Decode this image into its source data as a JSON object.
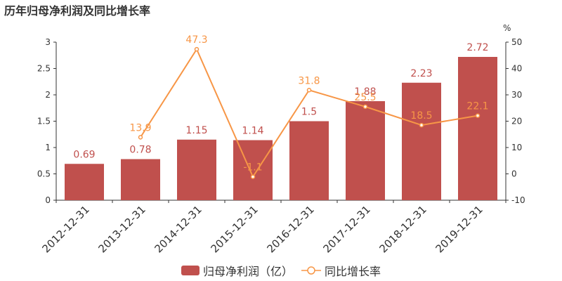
{
  "title": "历年归母净利润及同比增长率",
  "colors": {
    "bar": "#c0504d",
    "line": "#f79646",
    "axis": "#333333"
  },
  "chart_data": {
    "type": "bar+line",
    "categories": [
      "2012-12-31",
      "2013-12-31",
      "2014-12-31",
      "2015-12-31",
      "2016-12-31",
      "2017-12-31",
      "2018-12-31",
      "2019-12-31"
    ],
    "series": [
      {
        "name": "归母净利润（亿）",
        "type": "bar",
        "axis": "left",
        "values": [
          0.69,
          0.78,
          1.15,
          1.14,
          1.5,
          1.88,
          2.23,
          2.72
        ],
        "labels": [
          "0.69",
          "0.78",
          "1.15",
          "1.14",
          "1.5",
          "1.88",
          "2.23",
          "2.72"
        ]
      },
      {
        "name": "同比增长率",
        "type": "line",
        "axis": "right",
        "values": [
          null,
          13.9,
          47.3,
          -1.1,
          31.8,
          25.5,
          18.5,
          22.1
        ],
        "labels": [
          "",
          "13.9",
          "47.3",
          "-1.1",
          "31.8",
          "25.5",
          "18.5",
          "22.1"
        ]
      }
    ],
    "left_axis": {
      "range": [
        0,
        3
      ],
      "ticks": [
        "0",
        "0.5",
        "1",
        "1.5",
        "2",
        "2.5",
        "3"
      ]
    },
    "right_axis": {
      "range": [
        -10,
        50
      ],
      "ticks": [
        "-10",
        "0",
        "10",
        "20",
        "30",
        "40",
        "50"
      ],
      "unit": "%"
    },
    "grid": false,
    "legend_position": "bottom"
  }
}
